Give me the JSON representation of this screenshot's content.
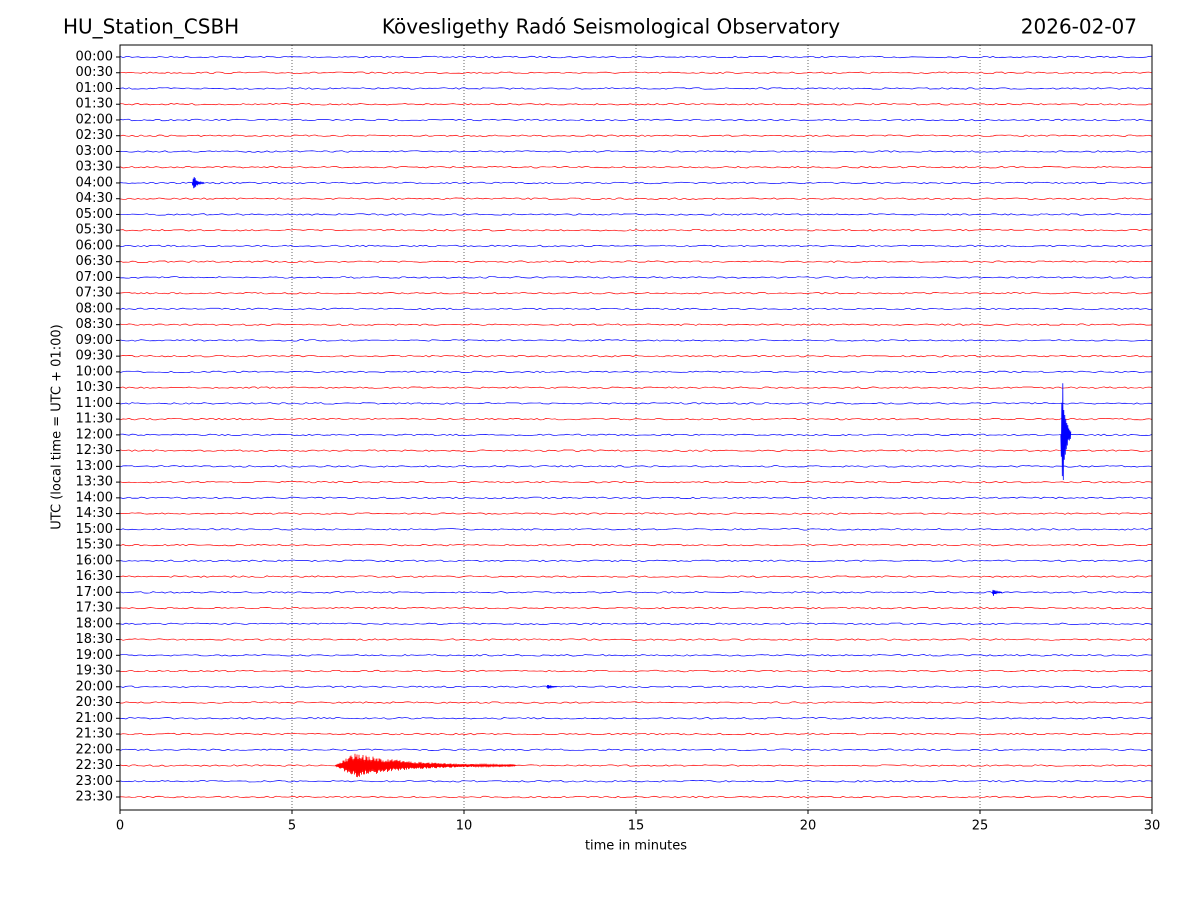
{
  "chart_data": {
    "type": "helicorder",
    "station": "HU_Station_CSBH",
    "title": "Kövesligethy Radó Seismological Observatory",
    "date": "2026-02-07",
    "xlabel": "time in minutes",
    "ylabel": "UTC (local time = UTC + 01:00)",
    "categories": [
      "00:00",
      "00:30",
      "01:00",
      "01:30",
      "02:00",
      "02:30",
      "03:00",
      "03:30",
      "04:00",
      "04:30",
      "05:00",
      "05:30",
      "06:00",
      "06:30",
      "07:00",
      "07:30",
      "08:00",
      "08:30",
      "09:00",
      "09:30",
      "10:00",
      "10:30",
      "11:00",
      "11:30",
      "12:00",
      "12:30",
      "13:00",
      "13:30",
      "14:00",
      "14:30",
      "15:00",
      "15:30",
      "16:00",
      "16:30",
      "17:00",
      "17:30",
      "18:00",
      "18:30",
      "19:00",
      "19:30",
      "20:00",
      "20:30",
      "21:00",
      "21:30",
      "22:00",
      "22:30",
      "23:00",
      "23:30"
    ],
    "colors": [
      "#0000ff",
      "#ff0000"
    ],
    "xlim": [
      0,
      30
    ],
    "xticks": [
      0,
      5,
      10,
      15,
      20,
      25,
      30
    ],
    "grid": true,
    "events": [
      {
        "trace": "04:00",
        "start": 2.1,
        "end": 2.45,
        "amplitude": 0.5
      },
      {
        "trace": "12:00",
        "start": 27.35,
        "end": 27.65,
        "amplitude": 4.6
      },
      {
        "trace": "17:00",
        "start": 25.35,
        "end": 25.65,
        "amplitude": 0.25
      },
      {
        "trace": "20:00",
        "start": 12.4,
        "end": 12.7,
        "amplitude": 0.15
      },
      {
        "trace": "22:30",
        "start": 6.25,
        "end": 11.5,
        "amplitude": 0.8
      }
    ]
  }
}
